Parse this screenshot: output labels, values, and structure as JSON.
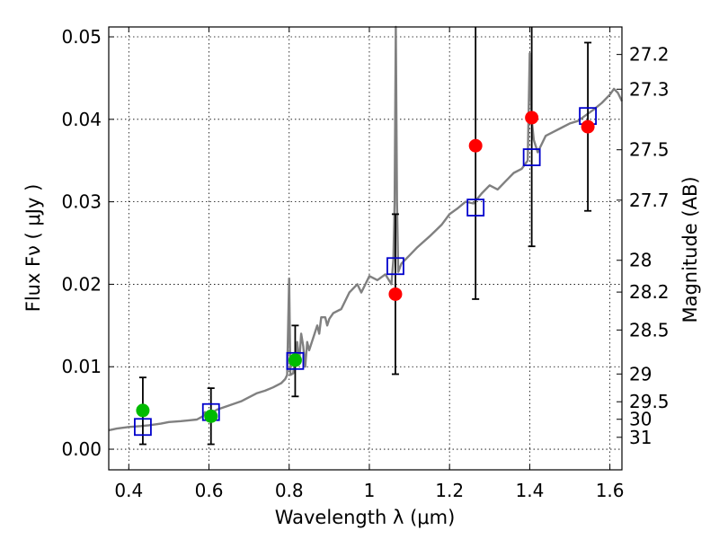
{
  "chart_data": {
    "type": "scatter",
    "xlabel": "Wavelength  λ (μm)",
    "ylabel": "Flux  Fν  ( μJy )",
    "ylabel_right": "Magnitude (AB)",
    "xlim": [
      0.35,
      1.63
    ],
    "ylim": [
      -0.0025,
      0.0512
    ],
    "grid": true,
    "x_ticks": [
      {
        "v": 0.4,
        "label": "0.4"
      },
      {
        "v": 0.6,
        "label": "0.6"
      },
      {
        "v": 0.8,
        "label": "0.8"
      },
      {
        "v": 1.0,
        "label": "1"
      },
      {
        "v": 1.2,
        "label": "1.2"
      },
      {
        "v": 1.4,
        "label": "1.4"
      },
      {
        "v": 1.6,
        "label": "1.6"
      }
    ],
    "y_ticks": [
      {
        "v": 0.0,
        "label": "0.00"
      },
      {
        "v": 0.01,
        "label": "0.01"
      },
      {
        "v": 0.02,
        "label": "0.02"
      },
      {
        "v": 0.03,
        "label": "0.03"
      },
      {
        "v": 0.04,
        "label": "0.04"
      },
      {
        "v": 0.05,
        "label": "0.05"
      }
    ],
    "mag_ticks": [
      {
        "v": 27.2,
        "label": "27.2"
      },
      {
        "v": 27.3,
        "label": "27.3"
      },
      {
        "v": 27.5,
        "label": "27.5"
      },
      {
        "v": 27.7,
        "label": "27.7"
      },
      {
        "v": 28.0,
        "label": "28"
      },
      {
        "v": 28.2,
        "label": "28.2"
      },
      {
        "v": 28.5,
        "label": "28.5"
      },
      {
        "v": 29.0,
        "label": "29"
      },
      {
        "v": 29.5,
        "label": "29.5"
      },
      {
        "v": 30.0,
        "label": "30"
      },
      {
        "v": 31.0,
        "label": "31"
      }
    ],
    "series": [
      {
        "kind": "spectrum",
        "color": "#808080",
        "points": [
          [
            0.35,
            0.0023
          ],
          [
            0.37,
            0.0025
          ],
          [
            0.4,
            0.0027
          ],
          [
            0.43,
            0.0028
          ],
          [
            0.45,
            0.0029
          ],
          [
            0.48,
            0.0031
          ],
          [
            0.5,
            0.0033
          ],
          [
            0.53,
            0.0034
          ],
          [
            0.55,
            0.0035
          ],
          [
            0.57,
            0.0036
          ],
          [
            0.585,
            0.004
          ],
          [
            0.59,
            0.0045
          ],
          [
            0.595,
            0.0036
          ],
          [
            0.6,
            0.0042
          ],
          [
            0.62,
            0.0048
          ],
          [
            0.65,
            0.0053
          ],
          [
            0.68,
            0.0058
          ],
          [
            0.7,
            0.0063
          ],
          [
            0.72,
            0.0068
          ],
          [
            0.74,
            0.0071
          ],
          [
            0.76,
            0.0075
          ],
          [
            0.78,
            0.008
          ],
          [
            0.79,
            0.0085
          ],
          [
            0.795,
            0.009
          ],
          [
            0.8,
            0.0207
          ],
          [
            0.803,
            0.009
          ],
          [
            0.81,
            0.0092
          ],
          [
            0.815,
            0.011
          ],
          [
            0.82,
            0.013
          ],
          [
            0.825,
            0.0105
          ],
          [
            0.83,
            0.014
          ],
          [
            0.835,
            0.0125
          ],
          [
            0.84,
            0.01
          ],
          [
            0.845,
            0.013
          ],
          [
            0.85,
            0.012
          ],
          [
            0.86,
            0.0135
          ],
          [
            0.87,
            0.015
          ],
          [
            0.875,
            0.014
          ],
          [
            0.88,
            0.016
          ],
          [
            0.89,
            0.016
          ],
          [
            0.895,
            0.015
          ],
          [
            0.9,
            0.0158
          ],
          [
            0.91,
            0.0165
          ],
          [
            0.93,
            0.017
          ],
          [
            0.95,
            0.019
          ],
          [
            0.97,
            0.02
          ],
          [
            0.98,
            0.019
          ],
          [
            1.0,
            0.021
          ],
          [
            1.02,
            0.0205
          ],
          [
            1.04,
            0.0212
          ],
          [
            1.055,
            0.02
          ],
          [
            1.06,
            0.023
          ],
          [
            1.063,
            0.03
          ],
          [
            1.066,
            0.0512
          ],
          [
            1.069,
            0.03
          ],
          [
            1.072,
            0.0215
          ],
          [
            1.08,
            0.0225
          ],
          [
            1.1,
            0.0235
          ],
          [
            1.12,
            0.0245
          ],
          [
            1.15,
            0.0258
          ],
          [
            1.18,
            0.0272
          ],
          [
            1.2,
            0.0285
          ],
          [
            1.22,
            0.0292
          ],
          [
            1.24,
            0.03
          ],
          [
            1.26,
            0.0298
          ],
          [
            1.28,
            0.031
          ],
          [
            1.3,
            0.032
          ],
          [
            1.32,
            0.0315
          ],
          [
            1.34,
            0.0325
          ],
          [
            1.36,
            0.0335
          ],
          [
            1.38,
            0.034
          ],
          [
            1.395,
            0.035
          ],
          [
            1.4,
            0.048
          ],
          [
            1.405,
            0.04
          ],
          [
            1.41,
            0.0375
          ],
          [
            1.42,
            0.036
          ],
          [
            1.44,
            0.038
          ],
          [
            1.46,
            0.0385
          ],
          [
            1.48,
            0.039
          ],
          [
            1.5,
            0.0395
          ],
          [
            1.52,
            0.0398
          ],
          [
            1.54,
            0.0405
          ],
          [
            1.56,
            0.0412
          ],
          [
            1.58,
            0.042
          ],
          [
            1.6,
            0.043
          ],
          [
            1.61,
            0.0437
          ],
          [
            1.62,
            0.0432
          ],
          [
            1.63,
            0.0422
          ]
        ]
      },
      {
        "kind": "model",
        "marker": "square-open",
        "color": "#0000cc",
        "points": [
          {
            "x": 0.435,
            "y": 0.0027
          },
          {
            "x": 0.605,
            "y": 0.0045
          },
          {
            "x": 0.815,
            "y": 0.0107
          },
          {
            "x": 1.065,
            "y": 0.0222
          },
          {
            "x": 1.265,
            "y": 0.0293
          },
          {
            "x": 1.405,
            "y": 0.0354
          },
          {
            "x": 1.545,
            "y": 0.0404
          }
        ]
      },
      {
        "kind": "observed",
        "marker": "circle-filled",
        "color": "#00bb00",
        "points": [
          {
            "x": 0.435,
            "y": 0.0047,
            "err_lo": 0.0006,
            "err_hi": 0.0087
          },
          {
            "x": 0.605,
            "y": 0.004,
            "err_lo": 0.0006,
            "err_hi": 0.0074
          },
          {
            "x": 0.815,
            "y": 0.0108,
            "err_lo": 0.0064,
            "err_hi": 0.015
          }
        ]
      },
      {
        "kind": "observed",
        "marker": "circle-filled",
        "color": "#ff0000",
        "points": [
          {
            "x": 1.065,
            "y": 0.0188,
            "err_lo": 0.0091,
            "err_hi": 0.0285
          },
          {
            "x": 1.265,
            "y": 0.0368,
            "err_lo": 0.0182,
            "err_hi": 0.0512
          },
          {
            "x": 1.405,
            "y": 0.0402,
            "err_lo": 0.0246,
            "err_hi": 0.0512
          },
          {
            "x": 1.545,
            "y": 0.0391,
            "err_lo": 0.0289,
            "err_hi": 0.0493
          }
        ]
      }
    ]
  }
}
